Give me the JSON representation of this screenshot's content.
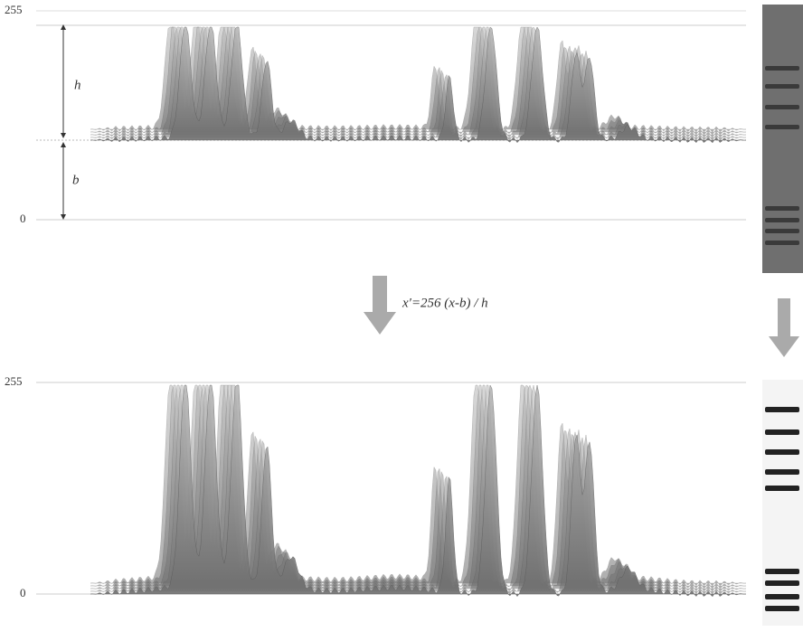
{
  "top_plot": {
    "y_top_label": "255",
    "y_bottom_label": "0",
    "h_label": "h",
    "b_label": "b"
  },
  "transform": {
    "formula": "x′=256 (x-b) / h"
  },
  "bottom_plot": {
    "y_top_label": "255",
    "y_bottom_label": "0"
  }
}
